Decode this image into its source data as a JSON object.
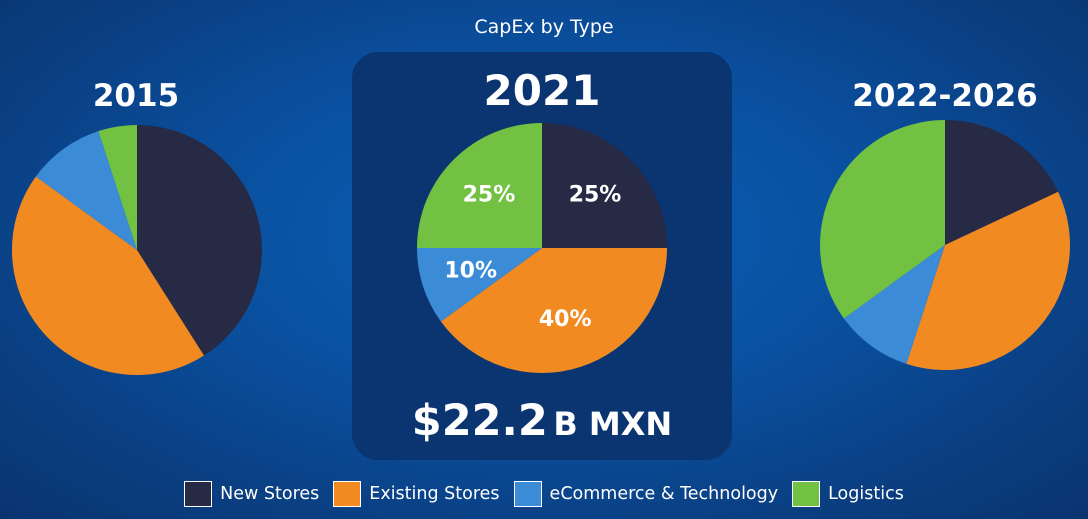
{
  "title": "CapEx by Type",
  "chart_data": [
    {
      "type": "pie",
      "title": "2015",
      "categories": [
        "New Stores",
        "Existing Stores",
        "eCommerce & Technology",
        "Logistics"
      ],
      "values": [
        41,
        44,
        10,
        5
      ],
      "data_labels": [],
      "colors": [
        "#262a45",
        "#f28a22",
        "#3b8bd6",
        "#72c143"
      ]
    },
    {
      "type": "pie",
      "title": "2021",
      "categories": [
        "New Stores",
        "Existing Stores",
        "eCommerce & Technology",
        "Logistics"
      ],
      "values": [
        25,
        40,
        10,
        25
      ],
      "data_labels": [
        "25%",
        "40%",
        "10%",
        "25%"
      ],
      "colors": [
        "#262a45",
        "#f28a22",
        "#3b8bd6",
        "#72c143"
      ]
    },
    {
      "type": "pie",
      "title": "2022-2026",
      "categories": [
        "New Stores",
        "Existing Stores",
        "eCommerce & Technology",
        "Logistics"
      ],
      "values": [
        18,
        37,
        10,
        35
      ],
      "data_labels": [],
      "colors": [
        "#262a45",
        "#f28a22",
        "#3b8bd6",
        "#72c143"
      ]
    }
  ],
  "total": {
    "amount": "$22.2",
    "unit": "B MXN"
  },
  "legend": [
    {
      "label": "New Stores",
      "color": "#262a45"
    },
    {
      "label": "Existing Stores",
      "color": "#f28a22"
    },
    {
      "label": "eCommerce & Technology",
      "color": "#3b8bd6"
    },
    {
      "label": "Logistics",
      "color": "#72c143"
    }
  ]
}
